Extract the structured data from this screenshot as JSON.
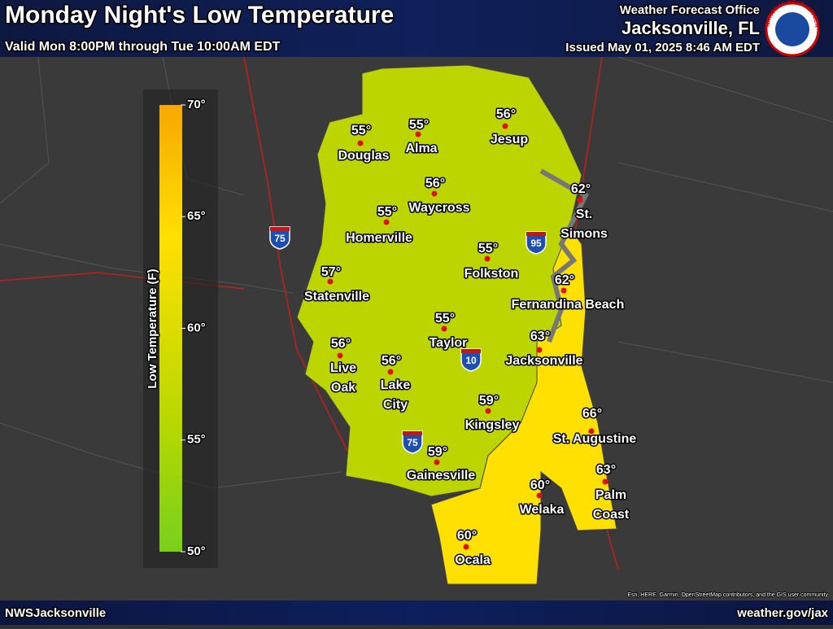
{
  "header": {
    "title": "Monday Night's Low Temperature",
    "subtitle": "Valid Mon 8:00PM through Tue 10:00AM EDT",
    "office_line": "Weather Forecast Office",
    "office": "Jacksonville, FL",
    "issued": "Issued May 01, 2025 8:46 AM EDT",
    "logo_text": "NATIONAL WEATHER SERVICE"
  },
  "legend": {
    "title": "Low Temperature (F)",
    "range": [
      50,
      70
    ],
    "ticks": [
      {
        "value": 50,
        "label": "50°"
      },
      {
        "value": 55,
        "label": "55°"
      },
      {
        "value": 60,
        "label": "60°"
      },
      {
        "value": 65,
        "label": "65°"
      },
      {
        "value": 70,
        "label": "70°"
      }
    ]
  },
  "cities": [
    {
      "name": [
        "Douglas"
      ],
      "value": 55,
      "label": "55°"
    },
    {
      "name": [
        "Alma"
      ],
      "value": 55,
      "label": "55°"
    },
    {
      "name": [
        "Jesup"
      ],
      "value": 56,
      "label": "56°"
    },
    {
      "name": [
        "Waycross"
      ],
      "value": 56,
      "label": "56°"
    },
    {
      "name": [
        "St.",
        "Simons"
      ],
      "value": 62,
      "label": "62°"
    },
    {
      "name": [
        "Homerville"
      ],
      "value": 55,
      "label": "55°"
    },
    {
      "name": [
        "Folkston"
      ],
      "value": 55,
      "label": "55°"
    },
    {
      "name": [
        "Statenville"
      ],
      "value": 57,
      "label": "57°"
    },
    {
      "name": [
        "Fernandina Beach"
      ],
      "value": 62,
      "label": "62°"
    },
    {
      "name": [
        "Taylor"
      ],
      "value": 55,
      "label": "55°"
    },
    {
      "name": [
        "Jacksonville"
      ],
      "value": 63,
      "label": "63°"
    },
    {
      "name": [
        "Live",
        "Oak"
      ],
      "value": 56,
      "label": "56°"
    },
    {
      "name": [
        "Lake",
        "City"
      ],
      "value": 56,
      "label": "56°"
    },
    {
      "name": [
        "Kingsley"
      ],
      "value": 59,
      "label": "59°"
    },
    {
      "name": [
        "St. Augustine"
      ],
      "value": 66,
      "label": "66°"
    },
    {
      "name": [
        "Gainesville"
      ],
      "value": 59,
      "label": "59°"
    },
    {
      "name": [
        "Palm",
        "Coast"
      ],
      "value": 63,
      "label": "63°"
    },
    {
      "name": [
        "Welaka"
      ],
      "value": 60,
      "label": "60°"
    },
    {
      "name": [
        "Ocala"
      ],
      "value": 60,
      "label": "60°"
    }
  ],
  "interstates": [
    "75",
    "95",
    "10",
    "75"
  ],
  "footer": {
    "left": "NWSJacksonville",
    "right": "weather.gov/jax",
    "attribution": "Esri, HERE, Garmin, OpenStreetMap contributors, and the GIS user community"
  }
}
